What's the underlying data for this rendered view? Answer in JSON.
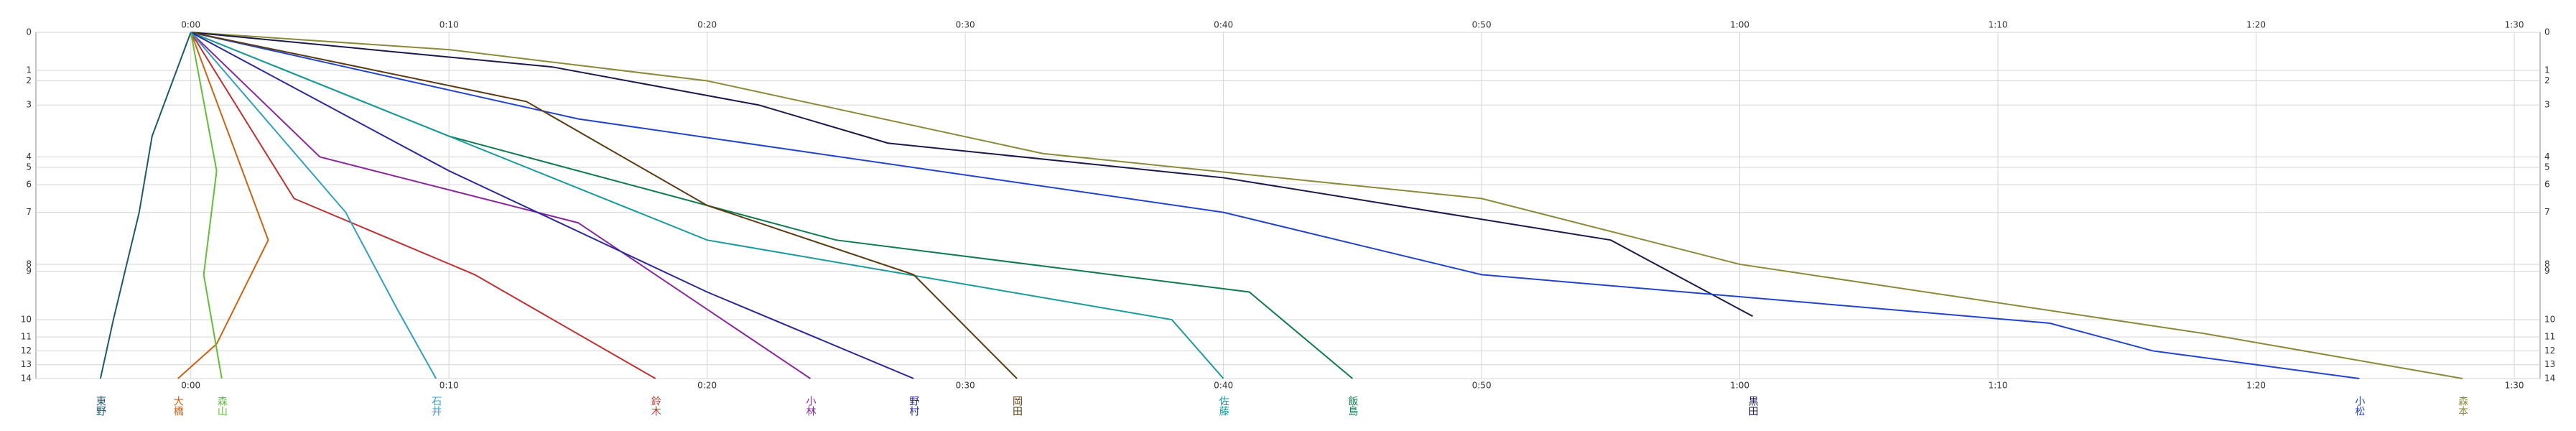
{
  "chart_data": {
    "type": "line",
    "xlim": [
      -6,
      91
    ],
    "xticks": [
      {
        "value": 0,
        "label": "0:00"
      },
      {
        "value": 10,
        "label": "0:10"
      },
      {
        "value": 20,
        "label": "0:20"
      },
      {
        "value": 30,
        "label": "0:30"
      },
      {
        "value": 40,
        "label": "0:40"
      },
      {
        "value": 50,
        "label": "0:50"
      },
      {
        "value": 60,
        "label": "1:00"
      },
      {
        "value": 70,
        "label": "1:10"
      },
      {
        "value": 80,
        "label": "1:20"
      },
      {
        "value": 90,
        "label": "1:30"
      }
    ],
    "ylim": [
      0,
      100
    ],
    "yticks": [
      0,
      {
        "value": 11,
        "label": "1"
      },
      {
        "value": 14,
        "label": "2"
      },
      {
        "value": 21,
        "label": "3"
      },
      {
        "value": 36,
        "label": "4"
      },
      {
        "value": 39,
        "label": "5"
      },
      {
        "value": 44,
        "label": "6"
      },
      {
        "value": 52,
        "label": "7"
      },
      {
        "value": 67,
        "label": "8"
      },
      {
        "value": 69,
        "label": "9"
      },
      {
        "value": 83,
        "label": "10"
      },
      {
        "value": 88,
        "label": "11"
      },
      {
        "value": 92,
        "label": "12"
      },
      {
        "value": 96,
        "label": "13"
      },
      {
        "value": 100,
        "label": "14"
      }
    ],
    "grid": true,
    "series": [
      {
        "name": "森本",
        "color": "#8a8a3a",
        "x": [
          0,
          10,
          20,
          33,
          50,
          60,
          78,
          88
        ],
        "values": [
          0,
          5,
          14,
          35,
          48,
          67,
          87,
          100
        ]
      },
      {
        "name": "黒田",
        "color": "#1a1a4a",
        "x": [
          0,
          14,
          22,
          27,
          40,
          55,
          60.5
        ],
        "values": [
          0,
          10,
          21,
          32,
          42,
          60,
          82
        ]
      },
      {
        "name": "小松",
        "color": "#2244cc",
        "x": [
          0,
          15,
          40,
          50,
          72,
          76,
          84
        ],
        "values": [
          0,
          25,
          52,
          70,
          84,
          92,
          100
        ]
      },
      {
        "name": "飯島",
        "color": "#107a50",
        "x": [
          0,
          10,
          25,
          41,
          45
        ],
        "values": [
          0,
          30,
          60,
          75,
          100
        ]
      },
      {
        "name": "佐藤",
        "color": "#1a9a9a",
        "x": [
          0,
          20,
          38,
          40
        ],
        "values": [
          0,
          60,
          83,
          100
        ]
      },
      {
        "name": "小林",
        "color": "#8a2a9a",
        "x": [
          0,
          5,
          15,
          24
        ],
        "values": [
          0,
          36,
          55,
          100
        ]
      },
      {
        "name": "岡田",
        "color": "#5a3a10",
        "x": [
          0,
          13,
          20,
          28,
          32
        ],
        "values": [
          0,
          20,
          50,
          70,
          100
        ]
      },
      {
        "name": "鈴木",
        "color": "#c03030",
        "x": [
          0,
          4,
          11,
          18
        ],
        "values": [
          0,
          48,
          70,
          100
        ]
      },
      {
        "name": "大橋",
        "color": "#d06010",
        "x": [
          0,
          3,
          1,
          -0.5
        ],
        "values": [
          0,
          60,
          90,
          100
        ]
      },
      {
        "name": "森山",
        "color": "#60c030",
        "x": [
          0,
          1,
          0.5,
          1.2
        ],
        "values": [
          0,
          40,
          70,
          100
        ]
      },
      {
        "name": "野村",
        "color": "#2a2a9a",
        "x": [
          0,
          10,
          20,
          28
        ],
        "values": [
          0,
          40,
          75,
          100
        ]
      },
      {
        "name": "東野",
        "color": "#1a5a6a",
        "x": [
          0,
          -1.5,
          -2,
          -3,
          -3.5
        ],
        "values": [
          0,
          30,
          52,
          83,
          100
        ]
      },
      {
        "name": "石井",
        "color": "#30a0c0",
        "x": [
          0,
          6,
          8,
          9.5
        ],
        "values": [
          0,
          52,
          80,
          100
        ]
      }
    ]
  }
}
